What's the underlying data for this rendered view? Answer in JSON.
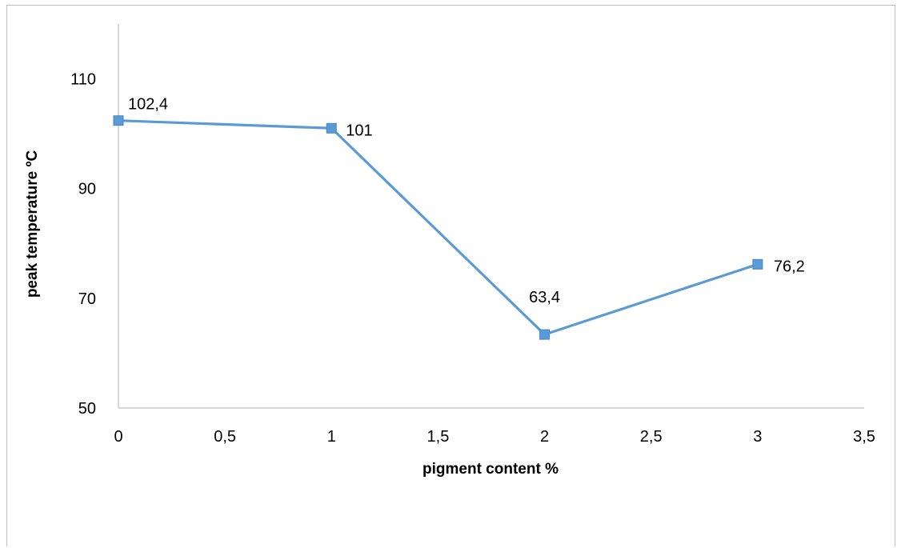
{
  "chart_data": {
    "type": "line",
    "x": [
      0,
      1,
      2,
      3
    ],
    "series": [
      {
        "values": [
          102.4,
          101,
          63.4,
          76.2
        ],
        "labels": [
          "102,4",
          "101",
          "63,4",
          "76,2"
        ]
      }
    ],
    "xlabel": "pigment content %",
    "ylabel": "peak  temperature ºC",
    "xlim": [
      0,
      3.5
    ],
    "ylim": [
      50,
      120
    ],
    "xticks": [
      0,
      0.5,
      1,
      1.5,
      2,
      2.5,
      3,
      3.5
    ],
    "xtick_labels": [
      "0",
      "0,5",
      "1",
      "1,5",
      "2",
      "2,5",
      "3",
      "3,5"
    ],
    "yticks": [
      50,
      70,
      90,
      110
    ],
    "ytick_labels": [
      "50",
      "70",
      "90",
      "110"
    ],
    "grid": false,
    "legend": "none",
    "line_color": "#5b9bd5",
    "marker": "square"
  }
}
